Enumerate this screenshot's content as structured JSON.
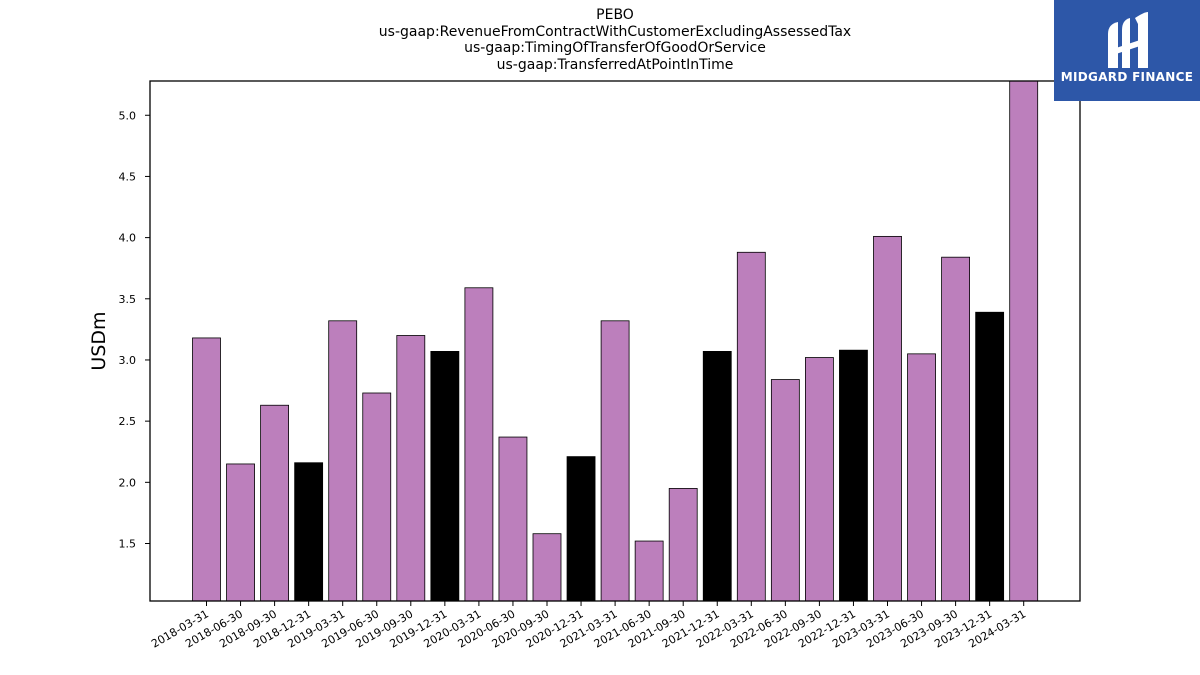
{
  "chart_data": {
    "type": "bar",
    "title_lines": [
      "PEBO",
      "us-gaap:RevenueFromContractWithCustomerExcludingAssessedTax",
      "us-gaap:TimingOfTransferOfGoodOrService",
      "us-gaap:TransferredAtPointInTime"
    ],
    "ylabel": "USDm",
    "xlabel": "",
    "ylim": [
      1.03,
      5.28
    ],
    "yticks": [
      1.5,
      2.0,
      2.5,
      3.0,
      3.5,
      4.0,
      4.5,
      5.0
    ],
    "categories": [
      "2018-03-31",
      "2018-06-30",
      "2018-09-30",
      "2018-12-31",
      "2019-03-31",
      "2019-06-30",
      "2019-09-30",
      "2019-12-31",
      "2020-03-31",
      "2020-06-30",
      "2020-09-30",
      "2020-12-31",
      "2021-03-31",
      "2021-06-30",
      "2021-09-30",
      "2021-12-31",
      "2022-03-31",
      "2022-06-30",
      "2022-09-30",
      "2022-12-31",
      "2023-03-31",
      "2023-06-30",
      "2023-09-30",
      "2023-12-31",
      "2024-03-31"
    ],
    "values": [
      3.18,
      2.15,
      2.63,
      2.16,
      3.32,
      2.73,
      3.2,
      3.07,
      3.59,
      2.37,
      1.58,
      2.21,
      3.32,
      1.52,
      1.95,
      3.07,
      3.88,
      2.84,
      3.02,
      3.08,
      4.01,
      3.05,
      3.84,
      3.39,
      5.28
    ],
    "colors": {
      "quarter": "#bc7fbc",
      "year_end": "#000000",
      "edge": "#000000"
    },
    "bar_color_keys": [
      "quarter",
      "quarter",
      "quarter",
      "year_end",
      "quarter",
      "quarter",
      "quarter",
      "year_end",
      "quarter",
      "quarter",
      "quarter",
      "year_end",
      "quarter",
      "quarter",
      "quarter",
      "year_end",
      "quarter",
      "quarter",
      "quarter",
      "year_end",
      "quarter",
      "quarter",
      "quarter",
      "year_end",
      "quarter"
    ],
    "grid": false,
    "legend": "none"
  },
  "logo": {
    "text": "MIDGARD FINANCE",
    "background": "#2d57a8"
  }
}
